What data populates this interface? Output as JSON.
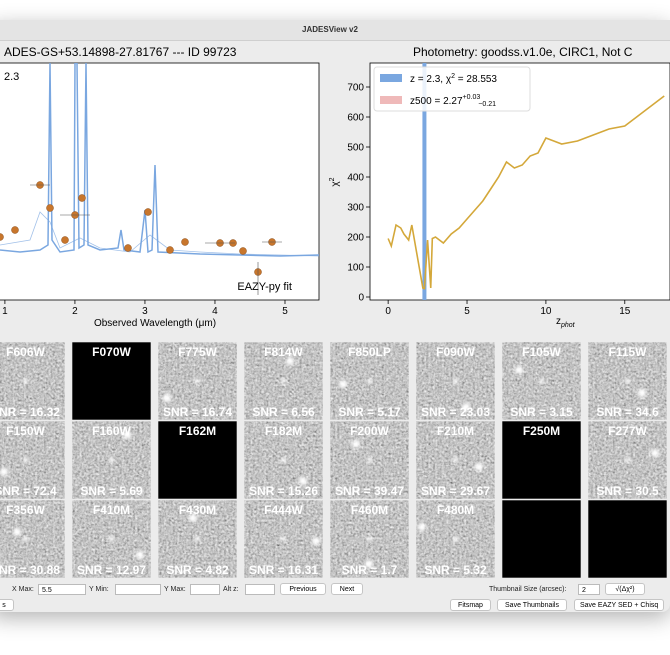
{
  "window_title": "JADESView v2",
  "left_plot": {
    "title": "ADES-GS+53.14898-27.81767 --- ID 99723",
    "annotation": "2.3",
    "fit_label": "EAZY-py fit",
    "xlabel": "Observed Wavelength (μm)",
    "xlim": [
      0.93,
      5.5
    ],
    "xticks": [
      1,
      2,
      3,
      4,
      5
    ]
  },
  "right_plot": {
    "title": "Photometry: goodss.v1.0e, CIRC1, Not C",
    "ylabel": "χ",
    "ylabel_sup": "2",
    "xlabel": "z",
    "xlabel_sub": "phot",
    "xlim": [
      -1.15,
      18.5
    ],
    "ylim": [
      -10,
      780
    ],
    "xticks": [
      0,
      5,
      10,
      15
    ],
    "yticks": [
      0,
      100,
      200,
      300,
      400,
      500,
      600,
      700
    ],
    "x": [
      0,
      0.2,
      0.5,
      0.8,
      1,
      1.3,
      1.5,
      1.8,
      2,
      2.2,
      2.3,
      2.5,
      2.7,
      2.8,
      3,
      3.5,
      4,
      4.5,
      5,
      5.5,
      6,
      6.5,
      7,
      7.5,
      8,
      8.5,
      9,
      9.5,
      10,
      10.5,
      11,
      12,
      13,
      14,
      15,
      15.5,
      16,
      17,
      17.5
    ],
    "values": [
      195,
      170,
      240,
      230,
      210,
      190,
      240,
      150,
      90,
      30,
      28,
      190,
      30,
      195,
      200,
      180,
      210,
      230,
      260,
      290,
      320,
      360,
      400,
      450,
      430,
      440,
      470,
      480,
      530,
      520,
      510,
      520,
      540,
      560,
      570,
      590,
      610,
      650,
      670
    ],
    "z_line": 2.3,
    "legend": [
      {
        "text": "z = 2.3, χ",
        "sup": "2",
        "text2": " = 28.553",
        "color": "#7aa7e0"
      },
      {
        "text": "z500 = 2.27",
        "sup": "+0.03",
        "sub": "−0.21",
        "color": "#efb9b9"
      }
    ]
  },
  "thumbnails": [
    [
      {
        "filter": "F606W",
        "snr": "SNR = 16.32"
      },
      {
        "filter": "F070W"
      },
      {
        "filter": "F775W",
        "snr": "SNR = 16.74"
      },
      {
        "filter": "F814W",
        "snr": "SNR = 6.56"
      },
      {
        "filter": "F850LP",
        "snr": "SNR = 5.17"
      },
      {
        "filter": "F090W",
        "snr": "SNR = 23.03"
      },
      {
        "filter": "F105W",
        "snr": "SNR = 3.15"
      },
      {
        "filter": "F115W",
        "snr": "SNR = 34.6"
      }
    ],
    [
      {
        "filter": "F150W",
        "snr": "SNR = 72.4"
      },
      {
        "filter": "F160W",
        "snr": "SNR = 5.69"
      },
      {
        "filter": "F162M"
      },
      {
        "filter": "F182M",
        "snr": "SNR = 15.26"
      },
      {
        "filter": "F200W",
        "snr": "SNR = 39.47"
      },
      {
        "filter": "F210M",
        "snr": "SNR = 29.67"
      },
      {
        "filter": "F250M"
      },
      {
        "filter": "F277W",
        "snr": "SNR = 30.5"
      }
    ],
    [
      {
        "filter": "F356W",
        "snr": "SNR = 30.88"
      },
      {
        "filter": "F410M",
        "snr": "SNR = 12.97"
      },
      {
        "filter": "F430M",
        "snr": "SNR = 4.82"
      },
      {
        "filter": "F444W",
        "snr": "SNR = 16.31"
      },
      {
        "filter": "F460M",
        "snr": "SNR = 1.7"
      },
      {
        "filter": "F480M",
        "snr": "SNR = 5.32"
      },
      null,
      null
    ]
  ],
  "controls": {
    "x_max_label": "X Max:",
    "x_max_value": "5.5",
    "y_min_label": "Y Min:",
    "y_max_label": "Y Max:",
    "alt_z_label": "Alt z:",
    "previous": "Previous",
    "next": "Next",
    "thumb_size_label": "Thumbnail Size (arcsec):",
    "thumb_size_value": "2",
    "chi_button": "√(Δχ²)",
    "cut_button": "s",
    "fitsmap": "Fitsmap",
    "save_thumbnails": "Save Thumbnails",
    "save_sed": "Save EAZY SED + Chisq"
  }
}
